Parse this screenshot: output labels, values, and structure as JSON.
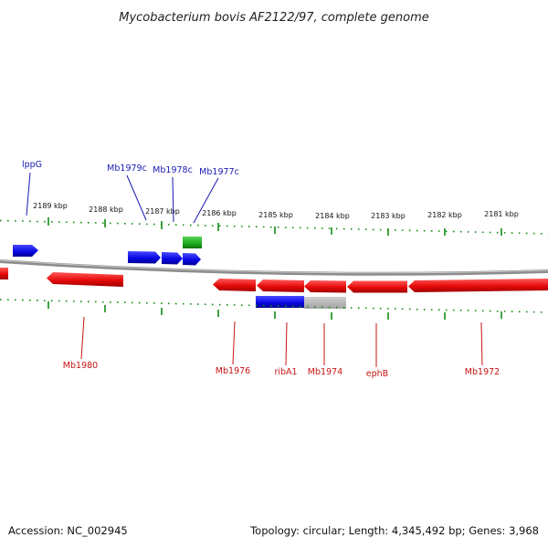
{
  "title": "Mycobacterium bovis AF2122/97, complete genome",
  "footer": {
    "accession": "Accession: NC_002945",
    "summary": "Topology: circular; Length: 4,345,492 bp; Genes: 3,968"
  },
  "ticks": [
    {
      "label": "2189 kbp"
    },
    {
      "label": "2188 kbp"
    },
    {
      "label": "2187 kbp"
    },
    {
      "label": "2186 kbp"
    },
    {
      "label": "2185 kbp"
    },
    {
      "label": "2184 kbp"
    },
    {
      "label": "2183 kbp"
    },
    {
      "label": "2182 kbp"
    },
    {
      "label": "2181 kbp"
    }
  ],
  "genes_top": [
    {
      "label": "lppG"
    },
    {
      "label": "Mb1979c"
    },
    {
      "label": "Mb1978c"
    },
    {
      "label": "Mb1977c"
    }
  ],
  "genes_bottom": [
    {
      "label": "Mb1980"
    },
    {
      "label": "Mb1976"
    },
    {
      "label": "ribA1"
    },
    {
      "label": "Mb1974"
    },
    {
      "label": "ephB"
    },
    {
      "label": "Mb1972"
    }
  ],
  "colors": {
    "forward_gene": "#0a0ae6",
    "reverse_gene": "#e60a0a",
    "rna_feature": "#1eaa1e",
    "other_feature": "#b4b4b4",
    "backbone": "#8c8c8c",
    "tick_marks": "#148c14"
  }
}
